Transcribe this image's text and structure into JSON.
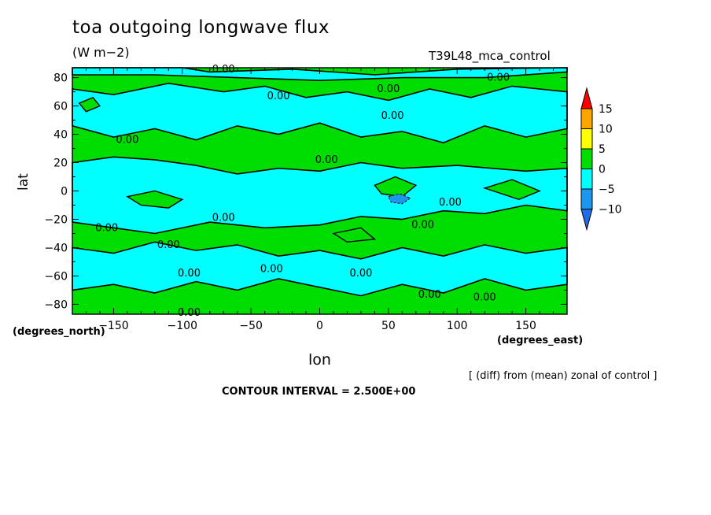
{
  "header": {
    "title": "toa outgoing longwave flux",
    "units": "(W m−2)",
    "run": "T39L48_mca_control"
  },
  "footer": {
    "note": "[ (diff) from (mean) zonal of control ]",
    "contour_interval": "CONTOUR INTERVAL = 2.500E+00"
  },
  "chart_data": {
    "type": "heatmap",
    "title": "toa outgoing longwave flux",
    "xlabel": "lon",
    "ylabel": "lat",
    "x_units": "(degrees_east)",
    "y_units": "(degrees_north)",
    "xlim": [
      -180,
      180
    ],
    "ylim": [
      -87,
      87
    ],
    "x_ticks": [
      -150,
      -100,
      -50,
      0,
      50,
      100,
      150
    ],
    "y_ticks": [
      80,
      60,
      40,
      20,
      0,
      -20,
      -40,
      -60,
      -80
    ],
    "contour_interval": 2.5,
    "colors": {
      "positive_fill": "#00dd00",
      "negative_fill": "#00ffff",
      "strong_negative_fill": "#1e96f0",
      "line": "#000000"
    },
    "colorbar": {
      "levels": [
        -10,
        -5,
        0,
        5,
        10,
        15
      ],
      "colors": [
        "#1e96f0",
        "#00ffff",
        "#00dd00",
        "#ffff00",
        "#ffa500",
        "#ff0000"
      ],
      "bins": [
        {
          "color": "#1e6ee6",
          "label": ""
        },
        {
          "color": "#1e96f0",
          "label": "-10"
        },
        {
          "color": "#00ffff",
          "label": "-5"
        },
        {
          "color": "#00dd00",
          "label": "0"
        },
        {
          "color": "#ffff00",
          "label": "5"
        },
        {
          "color": "#ffa500",
          "label": "10"
        },
        {
          "color": "#ff0000",
          "label": "15"
        }
      ]
    },
    "negative_regions": [
      {
        "points": [
          [
            -180,
            20
          ],
          [
            -150,
            24
          ],
          [
            -120,
            22
          ],
          [
            -90,
            18
          ],
          [
            -60,
            12
          ],
          [
            -30,
            16
          ],
          [
            0,
            14
          ],
          [
            30,
            20
          ],
          [
            60,
            16
          ],
          [
            100,
            18
          ],
          [
            150,
            14
          ],
          [
            180,
            16
          ],
          [
            180,
            -14
          ],
          [
            150,
            -10
          ],
          [
            120,
            -16
          ],
          [
            90,
            -14
          ],
          [
            60,
            -20
          ],
          [
            30,
            -18
          ],
          [
            0,
            -24
          ],
          [
            -40,
            -26
          ],
          [
            -80,
            -22
          ],
          [
            -120,
            -30
          ],
          [
            -150,
            -26
          ],
          [
            -180,
            -22
          ]
        ]
      },
      {
        "points": [
          [
            -180,
            72
          ],
          [
            -150,
            68
          ],
          [
            -110,
            76
          ],
          [
            -70,
            70
          ],
          [
            -40,
            74
          ],
          [
            -10,
            66
          ],
          [
            20,
            70
          ],
          [
            50,
            64
          ],
          [
            80,
            72
          ],
          [
            110,
            66
          ],
          [
            140,
            74
          ],
          [
            180,
            70
          ],
          [
            180,
            44
          ],
          [
            150,
            38
          ],
          [
            120,
            46
          ],
          [
            90,
            34
          ],
          [
            60,
            42
          ],
          [
            30,
            38
          ],
          [
            0,
            48
          ],
          [
            -30,
            40
          ],
          [
            -60,
            46
          ],
          [
            -90,
            36
          ],
          [
            -120,
            44
          ],
          [
            -150,
            38
          ],
          [
            -180,
            46
          ]
        ]
      },
      {
        "points": [
          [
            -180,
            -40
          ],
          [
            -150,
            -44
          ],
          [
            -120,
            -36
          ],
          [
            -90,
            -42
          ],
          [
            -60,
            -38
          ],
          [
            -30,
            -46
          ],
          [
            0,
            -42
          ],
          [
            30,
            -48
          ],
          [
            60,
            -40
          ],
          [
            90,
            -46
          ],
          [
            120,
            -38
          ],
          [
            150,
            -44
          ],
          [
            180,
            -40
          ],
          [
            180,
            -66
          ],
          [
            150,
            -70
          ],
          [
            120,
            -62
          ],
          [
            90,
            -72
          ],
          [
            60,
            -66
          ],
          [
            30,
            -74
          ],
          [
            0,
            -68
          ],
          [
            -30,
            -62
          ],
          [
            -60,
            -70
          ],
          [
            -90,
            -64
          ],
          [
            -120,
            -72
          ],
          [
            -150,
            -66
          ],
          [
            -180,
            -70
          ]
        ]
      },
      {
        "points": [
          [
            -180,
            87
          ],
          [
            -100,
            87
          ],
          [
            -80,
            84
          ],
          [
            -20,
            86
          ],
          [
            40,
            82
          ],
          [
            100,
            86
          ],
          [
            180,
            87
          ],
          [
            180,
            84
          ],
          [
            120,
            80
          ],
          [
            60,
            80
          ],
          [
            0,
            78
          ],
          [
            -60,
            80
          ],
          [
            -120,
            82
          ],
          [
            -180,
            82
          ]
        ]
      }
    ],
    "positive_regions": [
      {
        "points": [
          [
            -175,
            62
          ],
          [
            -165,
            66
          ],
          [
            -160,
            60
          ],
          [
            -170,
            56
          ]
        ]
      },
      {
        "points": [
          [
            -140,
            -4
          ],
          [
            -120,
            0
          ],
          [
            -100,
            -6
          ],
          [
            -110,
            -12
          ],
          [
            -130,
            -10
          ]
        ]
      },
      {
        "points": [
          [
            40,
            4
          ],
          [
            55,
            10
          ],
          [
            70,
            4
          ],
          [
            60,
            -4
          ],
          [
            45,
            -2
          ]
        ]
      },
      {
        "points": [
          [
            120,
            2
          ],
          [
            140,
            8
          ],
          [
            160,
            0
          ],
          [
            145,
            -6
          ]
        ]
      },
      {
        "points": [
          [
            10,
            -30
          ],
          [
            30,
            -26
          ],
          [
            40,
            -34
          ],
          [
            20,
            -36
          ]
        ]
      }
    ],
    "strong_negative_regions": [
      {
        "points": [
          [
            50,
            -4
          ],
          [
            58,
            -2
          ],
          [
            66,
            -5
          ],
          [
            60,
            -9
          ],
          [
            52,
            -8
          ]
        ]
      }
    ],
    "zero_labels": [
      {
        "x": -70,
        "y": 86,
        "text": "0.00"
      },
      {
        "x": -30,
        "y": 67,
        "text": "0.00"
      },
      {
        "x": 50,
        "y": 72,
        "text": "0.00"
      },
      {
        "x": 130,
        "y": 80,
        "text": "0.00"
      },
      {
        "x": 53,
        "y": 53,
        "text": "0.00"
      },
      {
        "x": -140,
        "y": 36,
        "text": "0.00"
      },
      {
        "x": 5,
        "y": 22,
        "text": "0.00"
      },
      {
        "x": 95,
        "y": -8,
        "text": "0.00"
      },
      {
        "x": -70,
        "y": -19,
        "text": "0.00"
      },
      {
        "x": 75,
        "y": -24,
        "text": "0.00"
      },
      {
        "x": -155,
        "y": -26,
        "text": "0.00"
      },
      {
        "x": -110,
        "y": -38,
        "text": "0.00"
      },
      {
        "x": -95,
        "y": -58,
        "text": "0.00"
      },
      {
        "x": -35,
        "y": -55,
        "text": "0.00"
      },
      {
        "x": 30,
        "y": -58,
        "text": "0.00"
      },
      {
        "x": 80,
        "y": -73,
        "text": "0.00"
      },
      {
        "x": 120,
        "y": -75,
        "text": "0.00"
      },
      {
        "x": -95,
        "y": -86,
        "text": "0.00"
      }
    ]
  }
}
